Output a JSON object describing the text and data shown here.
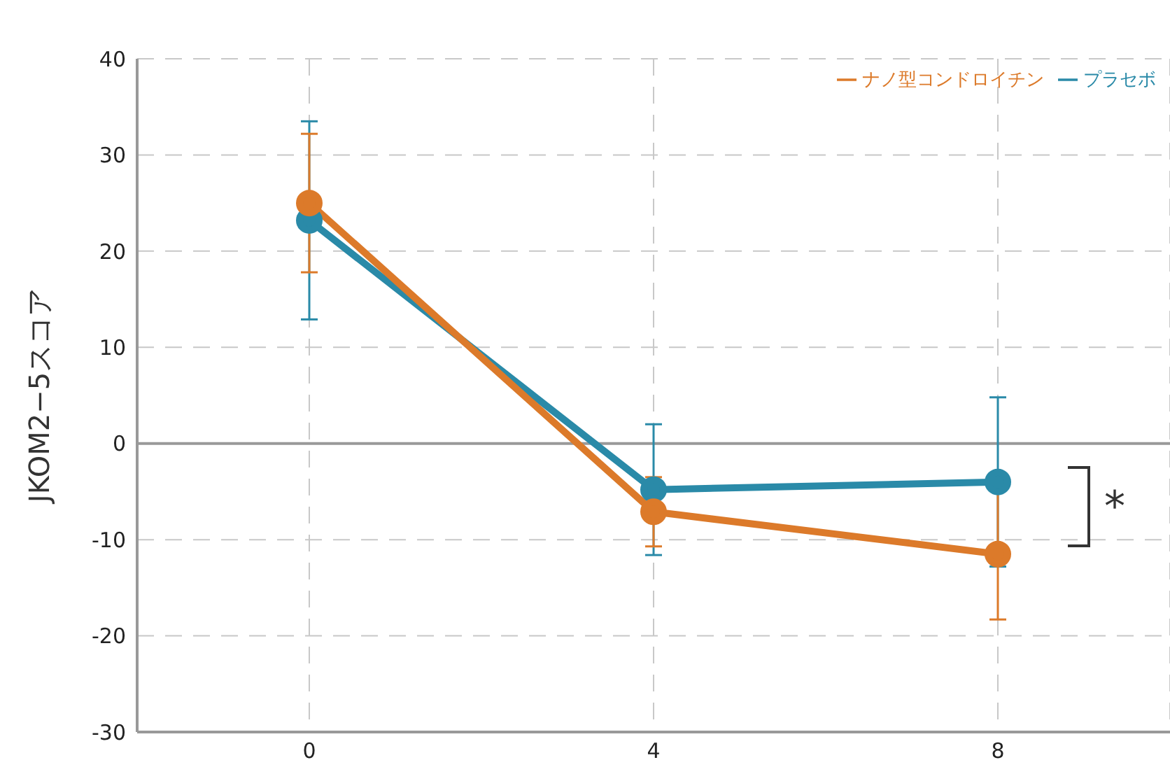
{
  "chart_data": {
    "type": "line",
    "ylabel": "JKOM2−5スコア",
    "x": [
      0,
      4,
      8
    ],
    "xlim": [
      -2,
      10
    ],
    "xticks": [
      0,
      4,
      8
    ],
    "ylim": [
      -30,
      40
    ],
    "yticks": [
      -30,
      -20,
      -10,
      0,
      10,
      20,
      30,
      40
    ],
    "grid": true,
    "legend": "top right",
    "marker": "circle",
    "line_style": "solid",
    "series": [
      {
        "name": "プラセボ",
        "color": "#2a8aa8",
        "values": [
          23.2,
          -4.8,
          -4.0
        ],
        "errors": [
          10.3,
          6.8,
          8.8
        ]
      },
      {
        "name": "ナノ型コンドロイチン",
        "color": "#dc7a2a",
        "values": [
          25.0,
          -7.1,
          -11.5
        ],
        "errors": [
          7.2,
          3.6,
          6.8
        ]
      }
    ],
    "ref_lines": [
      {
        "axis": "y",
        "value": 0,
        "color": "#999999",
        "line_style": "solid"
      }
    ],
    "annotations": [
      "*"
    ]
  }
}
